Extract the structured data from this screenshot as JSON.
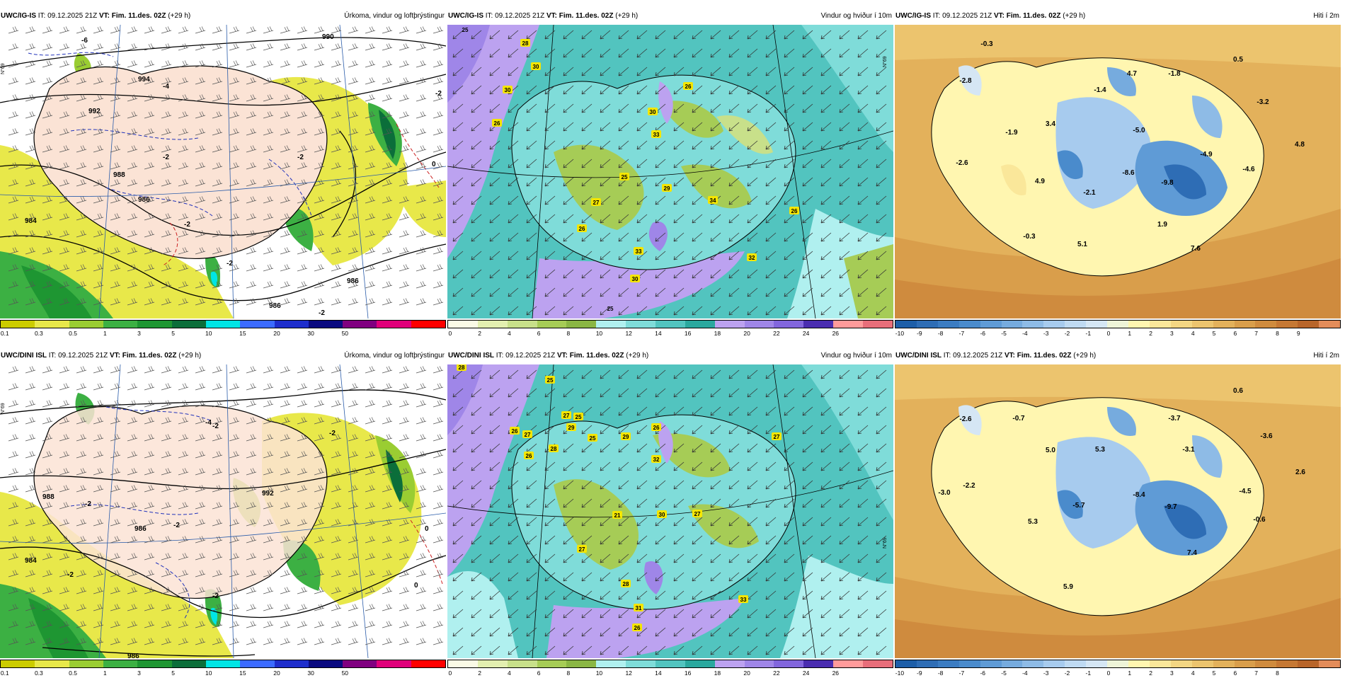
{
  "panels": [
    {
      "model": "UWC/IG-IS",
      "init": "IT: 09.12.2025 21Z",
      "vt_label": "VT:",
      "vt": "Fim. 11.des. 02Z",
      "lead": "(+29 h)",
      "title": "Úrkoma, vindur og loftþrýstingur"
    },
    {
      "model": "UWC/IG-IS",
      "init": "IT: 09.12.2025 21Z",
      "vt_label": "VT:",
      "vt": "Fim. 11.des. 02Z",
      "lead": "(+29 h)",
      "title": "Vindur og hviður í 10m"
    },
    {
      "model": "UWC/IG-IS",
      "init": "IT: 09.12.2025 21Z",
      "vt_label": "VT:",
      "vt": "Fim. 11.des. 02Z",
      "lead": "(+29 h)",
      "title": "Hiti í 2m"
    },
    {
      "model": "UWC/DINI ISL",
      "init": "IT: 09.12.2025 21Z",
      "vt_label": "VT:",
      "vt": "Fim. 11.des. 02Z",
      "lead": "(+29 h)",
      "title": "Úrkoma, vindur og loftþrýstingur"
    },
    {
      "model": "UWC/DINI ISL",
      "init": "IT: 09.12.2025 21Z",
      "vt_label": "VT:",
      "vt": "Fim. 11.des. 02Z",
      "lead": "(+29 h)",
      "title": "Vindur og hviður í 10m"
    },
    {
      "model": "UWC/DINI ISL",
      "init": "IT: 09.12.2025 21Z",
      "vt_label": "VT:",
      "vt": "Fim. 11.des. 02Z",
      "lead": "(+29 h)",
      "title": "Hiti í 2m"
    }
  ],
  "legends": {
    "precip": {
      "colors": [
        "#cccc00",
        "#e8e84a",
        "#9acd32",
        "#3cb043",
        "#1e9632",
        "#0b6e3a",
        "#00e5e5",
        "#3b6bff",
        "#1e2ecc",
        "#0a0a80",
        "#800080",
        "#e0007a",
        "#ff0000"
      ],
      "ticks": [
        "0.1",
        "0.3",
        "0.5",
        "1",
        "3",
        "5",
        "10",
        "15",
        "20",
        "30",
        "50"
      ]
    },
    "wind": {
      "colors": [
        "#fafae6",
        "#e3efb0",
        "#c8e08a",
        "#a6cc56",
        "#8ab644",
        "#b0f0ef",
        "#7fdcd9",
        "#52c4bf",
        "#2aa89e",
        "#bca2f0",
        "#9f86e8",
        "#8266dd",
        "#4a2db0",
        "#ff9b9b",
        "#e86e7a"
      ],
      "ticks": [
        "0",
        "2",
        "4",
        "6",
        "8",
        "10",
        "12",
        "14",
        "16",
        "18",
        "20",
        "22",
        "24",
        "26"
      ],
      "ticks_bottom": [
        "0",
        "2",
        "4",
        "6",
        "8",
        "10",
        "12",
        "14",
        "16",
        "18",
        "20",
        "22",
        "24",
        "26"
      ]
    },
    "temp": {
      "colors": [
        "#1d5ea8",
        "#2e6db5",
        "#3b7cc2",
        "#4a8bcc",
        "#5f9bd6",
        "#76abde",
        "#8ebbe6",
        "#a7cbee",
        "#bfdaf2",
        "#d5e6f4",
        "#eef4d8",
        "#fff6b0",
        "#fae79a",
        "#f3d683",
        "#ecc46e",
        "#e3b15b",
        "#d99e4b",
        "#cf8b3e",
        "#c57834",
        "#b8652a",
        "#e38c5a"
      ],
      "ticks": [
        "-10",
        "-9",
        "-8",
        "-7",
        "-6",
        "-5",
        "-4",
        "-3",
        "-2",
        "-1",
        "0",
        "1",
        "2",
        "3",
        "4",
        "5",
        "6",
        "7",
        "8",
        "9"
      ],
      "ticks_bottom": [
        "-10",
        "-9",
        "-8",
        "-7",
        "-6",
        "-5",
        "-4",
        "-3",
        "-2",
        "-1",
        "0",
        "1",
        "2",
        "3",
        "4",
        "5",
        "6",
        "7",
        "8"
      ]
    }
  },
  "labels": {
    "precip_top": {
      "isobars": [
        "990",
        "994",
        "992",
        "988",
        "986",
        "984",
        "986",
        "986"
      ],
      "temps": [
        "-6",
        "-4",
        "-2",
        "-2",
        "-2",
        "-2",
        "-2",
        "0",
        "-2"
      ]
    },
    "precip_bottom": {
      "isobars": [
        "988",
        "986",
        "984",
        "992",
        "986"
      ],
      "temps": [
        "-4",
        "-2",
        "-2",
        "-2",
        "0",
        "0",
        "-2",
        "-2",
        "-2"
      ]
    },
    "wind_top": [
      "25",
      "28",
      "30",
      "30",
      "26",
      "26",
      "30",
      "33",
      "25",
      "29",
      "27",
      "26",
      "34",
      "26",
      "33",
      "30",
      "32",
      "25"
    ],
    "wind_bottom": [
      "28",
      "25",
      "25",
      "29",
      "26",
      "27",
      "27",
      "25",
      "29",
      "26",
      "28",
      "26",
      "32",
      "27",
      "21",
      "30",
      "27",
      "27",
      "28",
      "31",
      "33",
      "26"
    ],
    "temp_top": [
      "-0.3",
      "0.5",
      "-2.8",
      "4.7",
      "-1.8",
      "-1.4",
      "-3.2",
      "-1.9",
      "3.4",
      "-5.0",
      "4.8",
      "-4.9",
      "-2.6",
      "4.9",
      "-8.6",
      "-9.8",
      "-4.6",
      "-2.1",
      "1.9",
      "-0.3",
      "5.1",
      "7.6"
    ],
    "temp_bottom": [
      "0.6",
      "-2.6",
      "-0.7",
      "-3.7",
      "-3.6",
      "5.0",
      "5.3",
      "-3.1",
      "2.6",
      "-2.2",
      "-3.0",
      "-5.7",
      "-8.4",
      "-9.7",
      "-4.5",
      "5.3",
      "-0.6",
      "7.4",
      "5.9"
    ]
  },
  "graticule": {
    "lat": "N°69"
  }
}
